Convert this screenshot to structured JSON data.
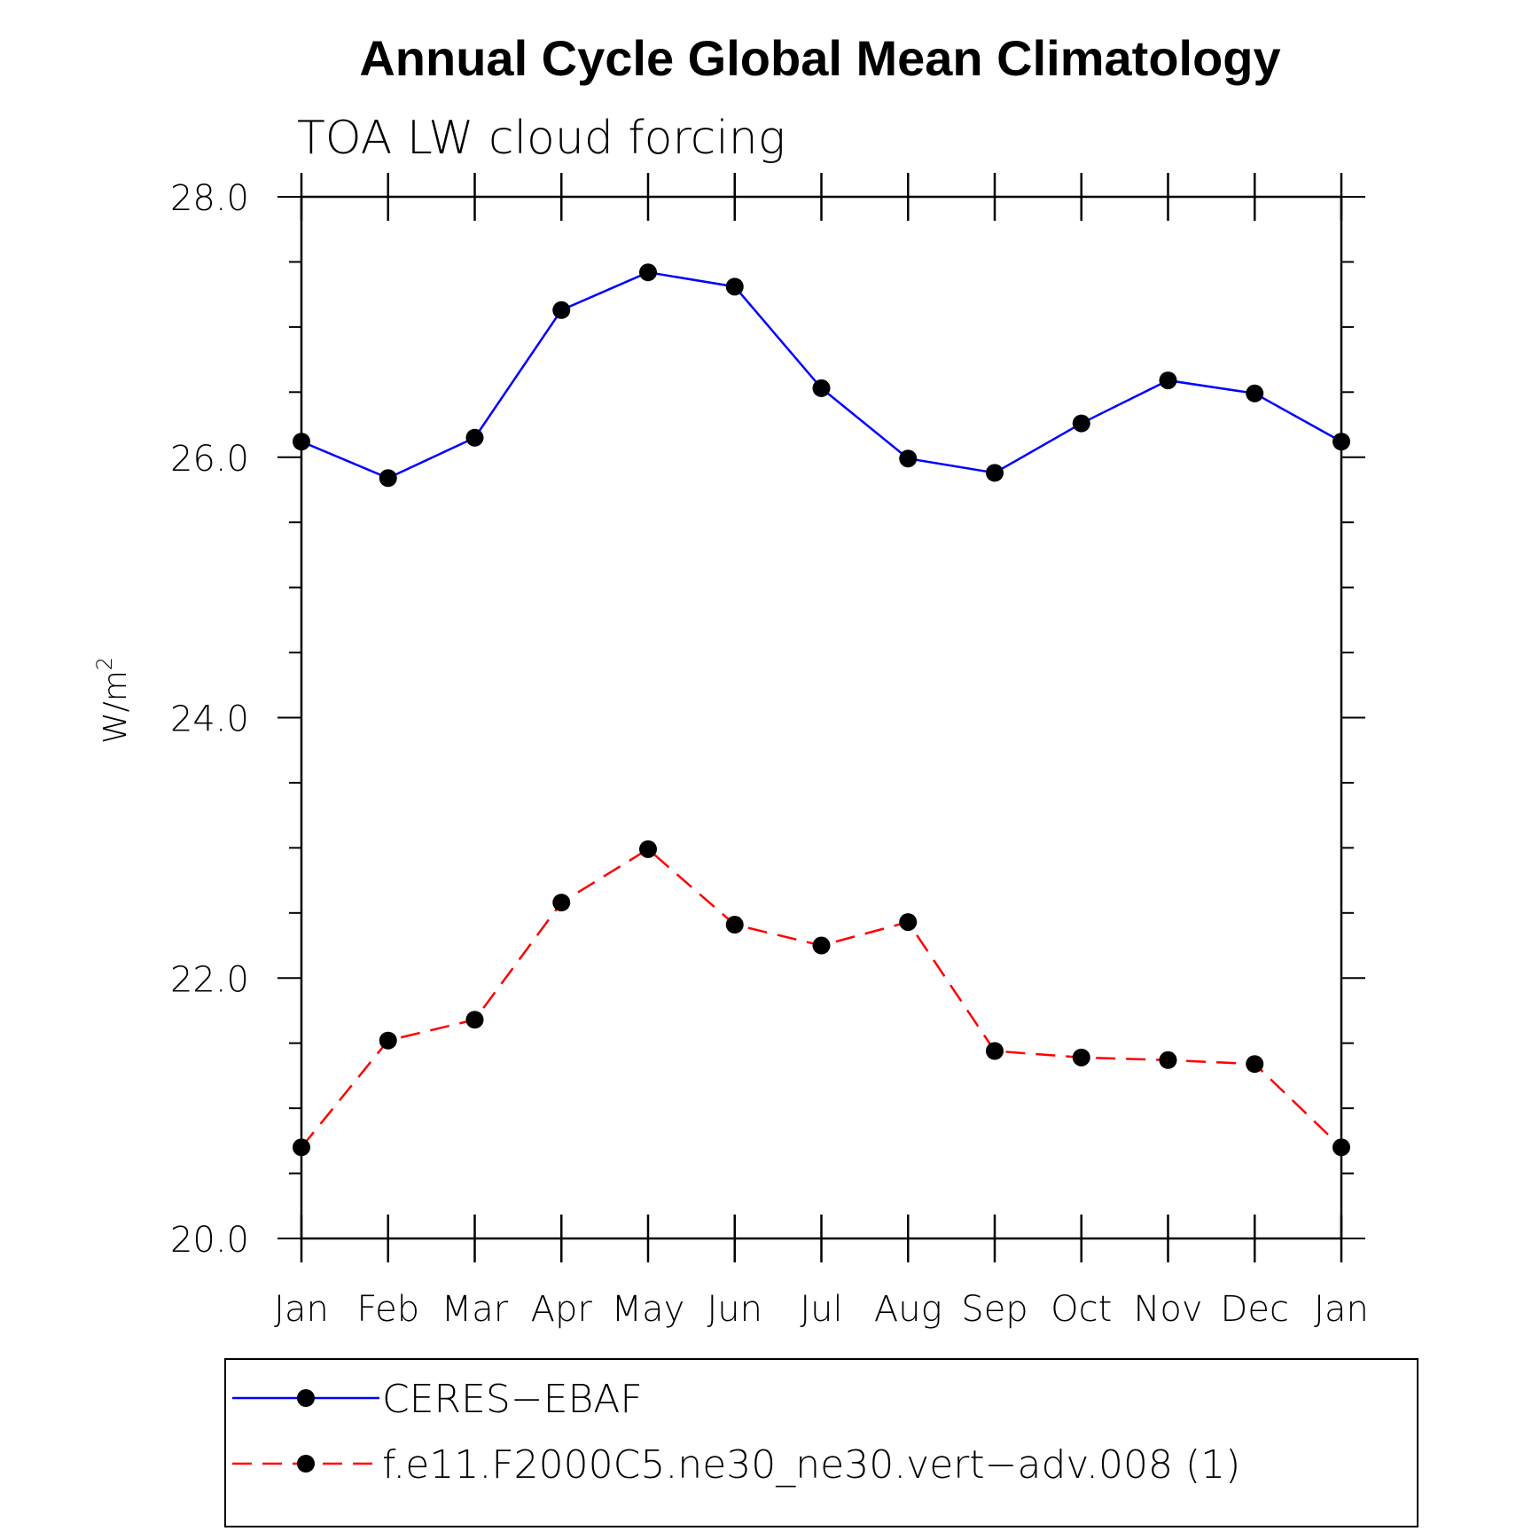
{
  "chart_data": {
    "type": "line",
    "title": "Annual Cycle Global Mean Climatology",
    "subtitle": "TOA LW cloud forcing",
    "ylabel": "W/m",
    "ylabel_superscript": "2",
    "ylim": [
      20.0,
      28.0
    ],
    "yticks": [
      "20.0",
      "22.0",
      "24.0",
      "26.0",
      "28.0"
    ],
    "categories": [
      "Jan",
      "Feb",
      "Mar",
      "Apr",
      "May",
      "Jun",
      "Jul",
      "Aug",
      "Sep",
      "Oct",
      "Nov",
      "Dec",
      "Jan"
    ],
    "series": [
      {
        "name": "CERES−EBAF",
        "color": "#0000ff",
        "dash": "solid",
        "values": [
          26.12,
          25.84,
          26.15,
          27.13,
          27.42,
          27.31,
          26.53,
          25.99,
          25.88,
          26.26,
          26.59,
          26.49,
          26.12
        ]
      },
      {
        "name": "f.e11.F2000C5.ne30_ne30.vert−adv.008 (1)",
        "color": "#ff0000",
        "dash": "dashed",
        "values": [
          20.7,
          21.52,
          21.68,
          22.58,
          22.99,
          22.41,
          22.25,
          22.43,
          21.44,
          21.39,
          21.37,
          21.34,
          20.7
        ]
      }
    ],
    "legend_position": "bottom"
  }
}
